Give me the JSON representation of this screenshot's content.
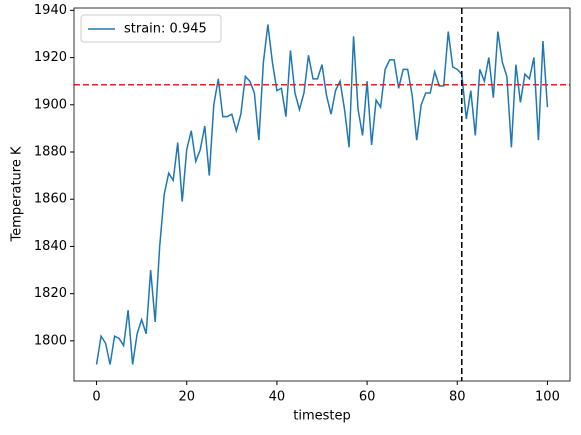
{
  "chart_data": {
    "type": "line",
    "x_label": "timestep",
    "y_label": "Temperature K",
    "x": [
      0,
      1,
      2,
      3,
      4,
      5,
      6,
      7,
      8,
      9,
      10,
      11,
      12,
      13,
      14,
      15,
      16,
      17,
      18,
      19,
      20,
      21,
      22,
      23,
      24,
      25,
      26,
      27,
      28,
      29,
      30,
      31,
      32,
      33,
      34,
      35,
      36,
      37,
      38,
      39,
      40,
      41,
      42,
      43,
      44,
      45,
      46,
      47,
      48,
      49,
      50,
      51,
      52,
      53,
      54,
      55,
      56,
      57,
      58,
      59,
      60,
      61,
      62,
      63,
      64,
      65,
      66,
      67,
      68,
      69,
      70,
      71,
      72,
      73,
      74,
      75,
      76,
      77,
      78,
      79,
      80,
      81,
      82,
      83,
      84,
      85,
      86,
      87,
      88,
      89,
      90,
      91,
      92,
      93,
      94,
      95,
      96,
      97,
      98,
      99,
      100
    ],
    "series": [
      {
        "name": "strain: 0.945",
        "color": "#1f77b4",
        "values": [
          1790,
          1802,
          1799,
          1790,
          1802,
          1801,
          1798,
          1813,
          1790,
          1803,
          1809,
          1803,
          1830,
          1808,
          1840,
          1862,
          1871,
          1868,
          1884,
          1859,
          1881,
          1889,
          1876,
          1881,
          1891,
          1870,
          1900,
          1911,
          1895,
          1895,
          1896,
          1889,
          1896,
          1912,
          1910,
          1905,
          1885,
          1918,
          1934,
          1918,
          1906,
          1907,
          1895,
          1923,
          1905,
          1898,
          1905,
          1921,
          1911,
          1911,
          1917,
          1904,
          1896,
          1906,
          1910,
          1898,
          1882,
          1929,
          1898,
          1887,
          1910,
          1883,
          1902,
          1899,
          1915,
          1919,
          1919,
          1907,
          1915,
          1915,
          1904,
          1885,
          1900,
          1905,
          1905,
          1914,
          1908,
          1908,
          1931,
          1916,
          1915,
          1913,
          1894,
          1906,
          1887,
          1915,
          1910,
          1920,
          1903,
          1931,
          1918,
          1912,
          1882,
          1917,
          1901,
          1913,
          1911,
          1920,
          1885,
          1927,
          1899
        ]
      }
    ],
    "hline": {
      "value": 1908.5,
      "color": "#d62728"
    },
    "vline": {
      "value": 81,
      "color": "#000000"
    },
    "xlim": [
      -5,
      105
    ],
    "ylim": [
      1783,
      1941
    ],
    "xticks": [
      0,
      20,
      40,
      60,
      80,
      100
    ],
    "yticks": [
      1800,
      1820,
      1840,
      1860,
      1880,
      1900,
      1920,
      1940
    ],
    "legend": "upper left"
  }
}
